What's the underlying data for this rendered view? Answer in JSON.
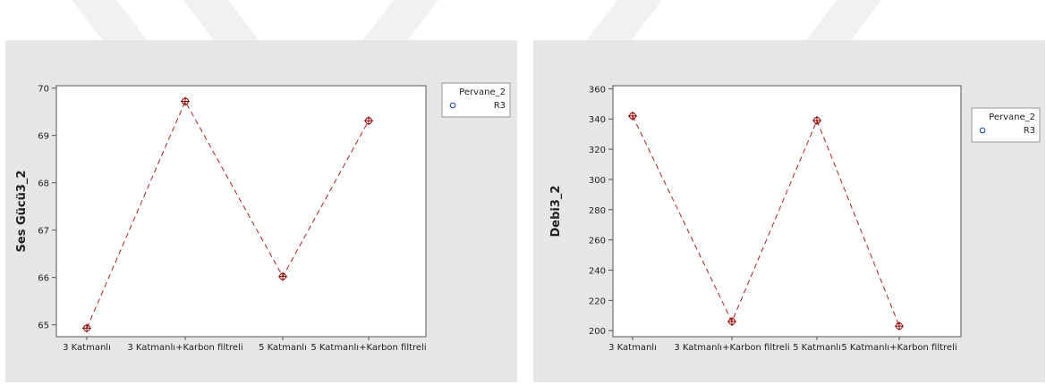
{
  "colors": {
    "panel_bg": "#e6e6e6",
    "plot_bg": "#ffffff",
    "line": "#b22222",
    "marker": "#8b0000",
    "legend_marker": "#1f3fbf",
    "watermark": "#f1f1f1"
  },
  "chart_data": [
    {
      "type": "line",
      "title": "",
      "xlabel": "",
      "ylabel": "Ses Gücü3_2",
      "categories": [
        "3 Katmanlı",
        "3 Katmanlı+Karbon filtreli",
        "5 Katmanlı",
        "5 Katmanlı+Karbon filtreli"
      ],
      "series": [
        {
          "name": "R3",
          "values": [
            64.93,
            69.72,
            66.02,
            69.31
          ]
        }
      ],
      "ylim": [
        64.75,
        70.05
      ],
      "yticks": [
        65,
        66,
        67,
        68,
        69,
        70
      ],
      "grid": false,
      "legend": {
        "title": "Pervane_2",
        "placement": "top-right"
      }
    },
    {
      "type": "line",
      "title": "",
      "xlabel": "",
      "ylabel": "Debi3_2",
      "categories": [
        "3 Katmanlı",
        "3 Katmanlı+Karbon filtreli",
        "5 Katmanlı",
        "5 Katmanlı+Karbon filtreli"
      ],
      "series": [
        {
          "name": "R3",
          "values": [
            342,
            206,
            339,
            203
          ]
        }
      ],
      "ylim": [
        196,
        362
      ],
      "yticks": [
        200,
        220,
        240,
        260,
        280,
        300,
        320,
        340,
        360
      ],
      "grid": false,
      "legend": {
        "title": "Pervane_2",
        "placement": "top-right"
      }
    }
  ]
}
